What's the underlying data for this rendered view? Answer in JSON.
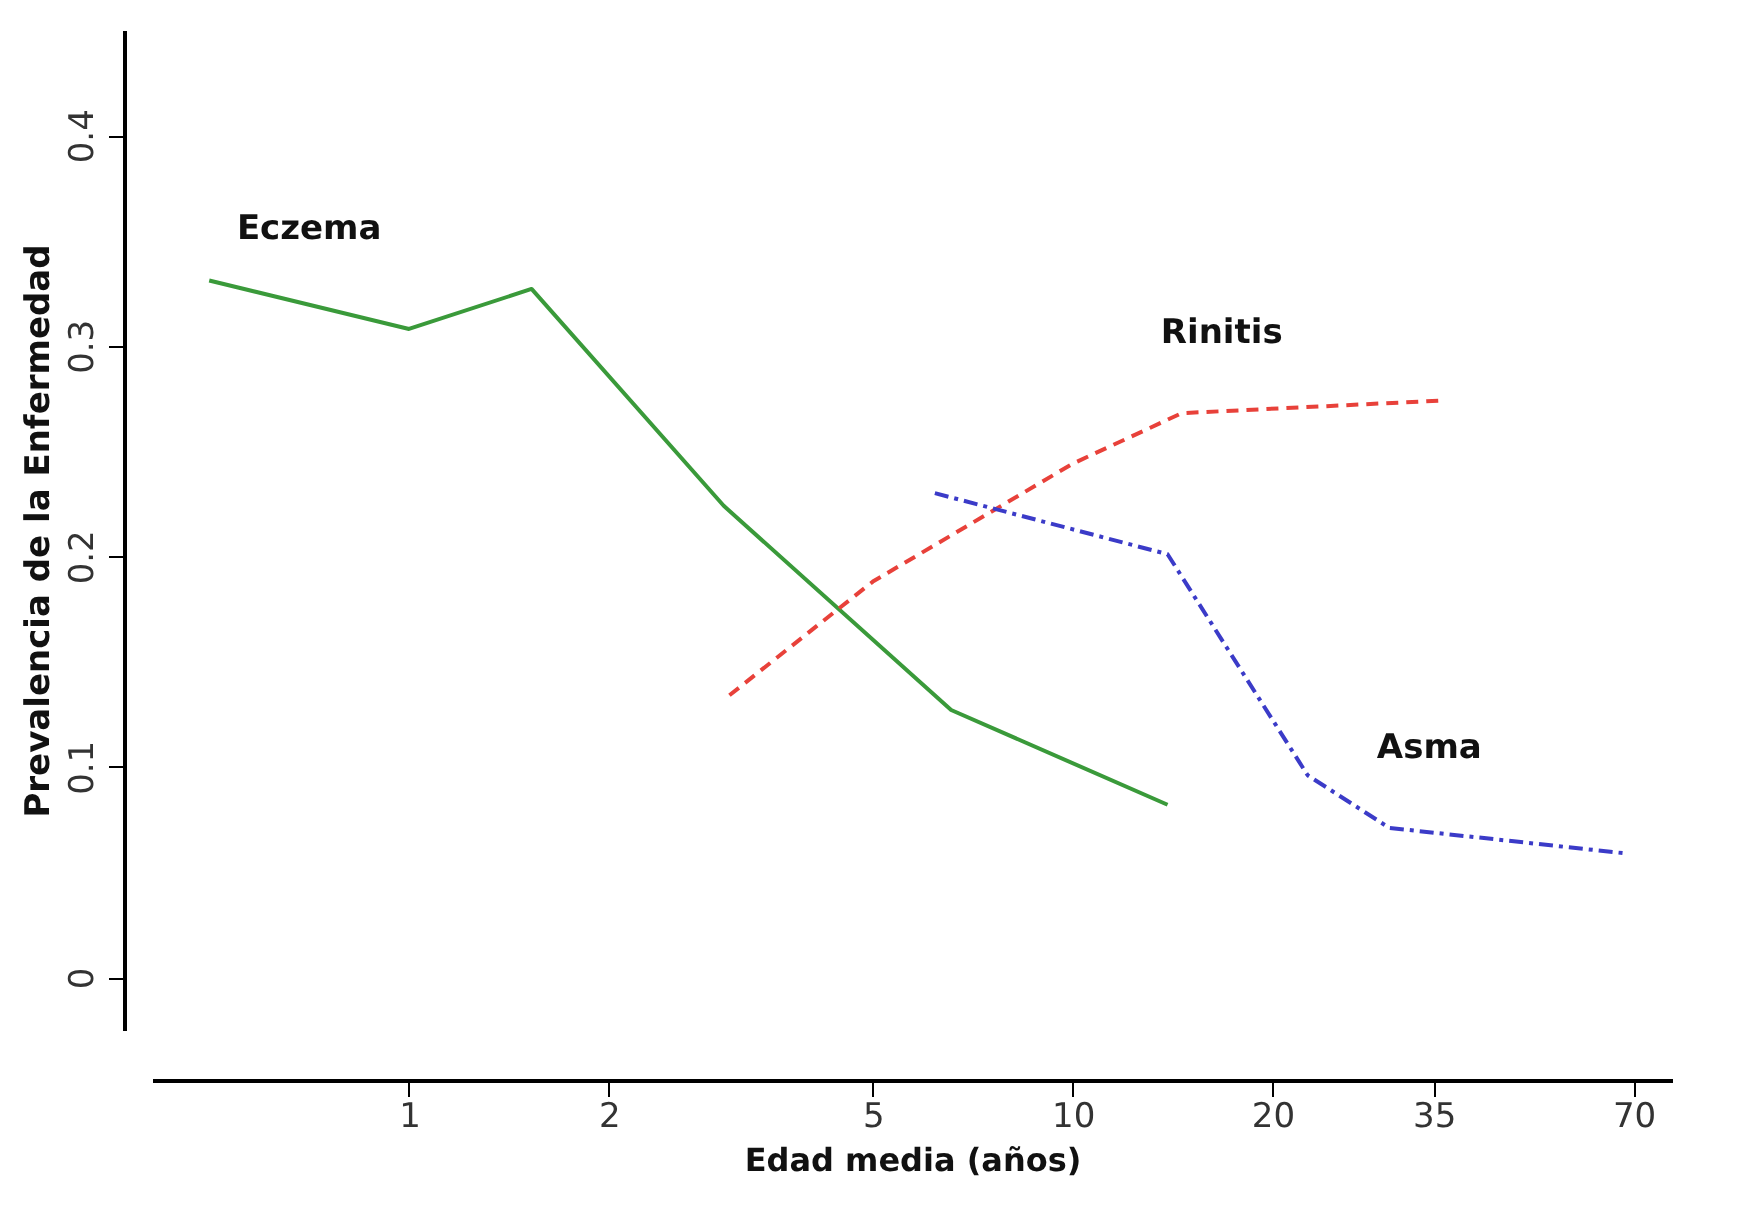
{
  "chart_data": {
    "type": "line",
    "xlabel": "Edad media (años)",
    "ylabel": "Prevalencia de la Enfermedad",
    "log": "x",
    "xlim": [
      0.41,
      80
    ],
    "xticks": [
      1,
      2,
      5,
      10,
      20,
      35,
      70
    ],
    "ylim": [
      -0.025,
      0.45
    ],
    "yticks": [
      0,
      0.1,
      0.2,
      0.3,
      0.4
    ],
    "grid": false,
    "legend": false,
    "marker": "none",
    "series": [
      {
        "name": "Eczema",
        "color": "#3a9a3a",
        "line_style": "solid",
        "x": [
          0.5,
          1,
          1.53,
          2.98,
          6.56,
          13.9
        ],
        "values": [
          0.331,
          0.308,
          0.327,
          0.224,
          0.127,
          0.082
        ]
      },
      {
        "name": "Rinitis",
        "color": "#e8413a",
        "line_style": "dashed",
        "x": [
          3.04,
          5,
          10,
          14.6,
          36
        ],
        "values": [
          0.134,
          0.188,
          0.244,
          0.268,
          0.274
        ]
      },
      {
        "name": "Asma",
        "color": "#3b3bc8",
        "line_style": "dotted",
        "x": [
          6.2,
          13.9,
          22.6,
          30,
          67.6
        ],
        "values": [
          0.23,
          0.201,
          0.096,
          0.071,
          0.059
        ]
      }
    ]
  }
}
